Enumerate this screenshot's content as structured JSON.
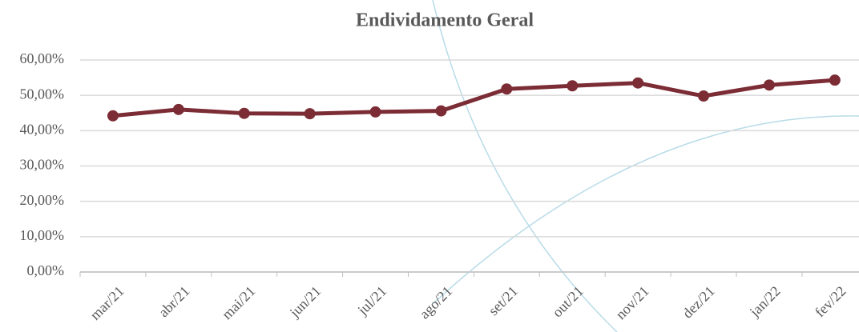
{
  "chart_data": {
    "type": "line",
    "title": "Endividamento Geral",
    "categories": [
      "mar/21",
      "abr/21",
      "mai/21",
      "jun/21",
      "jul/21",
      "ago/21",
      "set/21",
      "out/21",
      "nov/21",
      "dez/21",
      "jan/22",
      "fev/22"
    ],
    "series": [
      {
        "name": "Endividamento Geral",
        "color": "#7b2c34",
        "values": [
          44.2,
          46.0,
          44.9,
          44.8,
          45.3,
          45.6,
          51.8,
          52.7,
          53.5,
          49.8,
          52.9,
          54.3
        ]
      }
    ],
    "ylim": [
      0,
      60
    ],
    "yticks": [
      {
        "value": 0,
        "label": "0,00%"
      },
      {
        "value": 10,
        "label": "10,00%"
      },
      {
        "value": 20,
        "label": "20,00%"
      },
      {
        "value": 30,
        "label": "30,00%"
      },
      {
        "value": 40,
        "label": "40,00%"
      },
      {
        "value": 50,
        "label": "50,00%"
      },
      {
        "value": 60,
        "label": "60,00%"
      }
    ],
    "grid": true
  }
}
